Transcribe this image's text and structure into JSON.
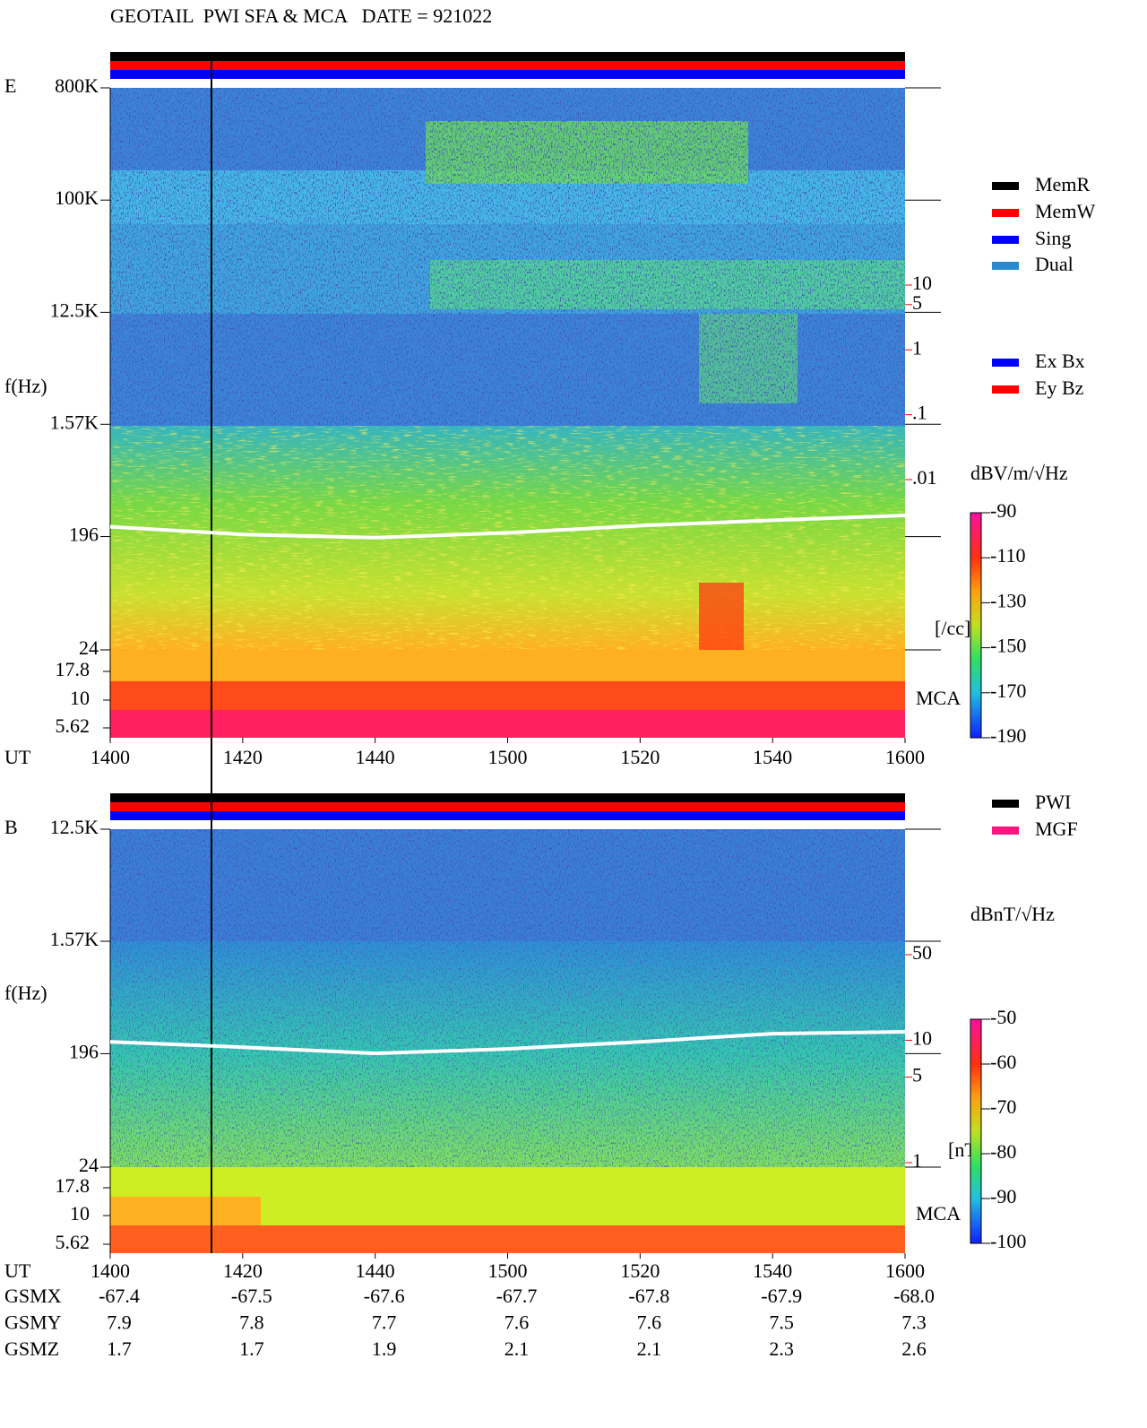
{
  "title": "GEOTAIL  PWI SFA & MCA   DATE = 921022",
  "chart_data": [
    {
      "type": "spectrogram",
      "panel_label": "E",
      "y_label": "f(Hz)",
      "x_label": "UT",
      "log_y": true,
      "ylim": [
        24,
        800000
      ],
      "yticks": [
        {
          "value": 800000,
          "label": "800K"
        },
        {
          "value": 100000,
          "label": "100K"
        },
        {
          "value": 12500,
          "label": "12.5K"
        },
        {
          "value": 1570,
          "label": "1.57K"
        },
        196,
        24
      ],
      "mca_label": "MCA",
      "mca_ticks": [
        17.8,
        10,
        5.62
      ],
      "xlim": [
        1400,
        1600
      ],
      "xticks": [
        1400,
        1420,
        1440,
        1500,
        1520,
        1540,
        1600
      ],
      "trace": {
        "color": "#ffffff",
        "x": [
          1400,
          1420,
          1440,
          1500,
          1520,
          1540,
          1600
        ],
        "values": [
          235,
          204,
          192,
          210,
          240,
          265,
          290
        ]
      },
      "y2lim": [
        0.01,
        10
      ],
      "y2ticks": [
        10,
        5,
        1,
        {
          "value": 0.1,
          "label": ".1"
        },
        {
          "value": 0.01,
          "label": ".01"
        }
      ],
      "y2_label": "[/cc]",
      "y2_color": "#ff0000",
      "colorbar": {
        "label": "dBV/m/√Hz",
        "lim": [
          -190,
          -90
        ],
        "ticks": [
          -90,
          -110,
          -130,
          -150,
          -170,
          -190
        ]
      },
      "legend": [
        {
          "name": "MemR",
          "color": "#000000"
        },
        {
          "name": "MemW",
          "color": "#ff0000"
        },
        {
          "name": "Sing",
          "color": "#0000ff"
        },
        {
          "name": "Dual",
          "color": "#2a8ad0"
        }
      ],
      "legend2": [
        {
          "name": "Ex Bx",
          "color": "#0000ff"
        },
        {
          "name": "Ey Bz",
          "color": "#ff0000"
        }
      ]
    },
    {
      "type": "spectrogram",
      "panel_label": "B",
      "y_label": "f(Hz)",
      "x_label": "UT",
      "log_y": true,
      "ylim": [
        24,
        12500
      ],
      "yticks": [
        {
          "value": 12500,
          "label": "12.5K"
        },
        {
          "value": 1570,
          "label": "1.57K"
        },
        196,
        24
      ],
      "mca_label": "MCA",
      "mca_ticks": [
        17.8,
        10,
        5.62
      ],
      "xlim": [
        1400,
        1600
      ],
      "xticks": [
        1400,
        1420,
        1440,
        1500,
        1520,
        1540,
        1600
      ],
      "trace": {
        "color": "#ffffff",
        "x": [
          1400,
          1420,
          1440,
          1500,
          1520,
          1540,
          1600
        ],
        "values": [
          244,
          221,
          197,
          214,
          244,
          284,
          294
        ]
      },
      "y2lim": [
        1,
        50
      ],
      "y2ticks": [
        50,
        10,
        5,
        1
      ],
      "y2_label": "[nT]",
      "y2_color": "#ff0000",
      "colorbar": {
        "label": "dBnT/√Hz",
        "lim": [
          -100,
          -50
        ],
        "ticks": [
          -50,
          -60,
          -70,
          -80,
          -90,
          -100
        ]
      },
      "legend": [
        {
          "name": "PWI",
          "color": "#000000"
        },
        {
          "name": "MGF",
          "color": "#ff1480"
        }
      ]
    }
  ],
  "orbit": [
    {
      "name": "GSMX",
      "values": [
        -67.4,
        -67.5,
        -67.6,
        -67.7,
        -67.8,
        -67.9,
        -68
      ],
      "value_labels": [
        "-67.4",
        "-67.5",
        "-67.6",
        "-67.7",
        "-67.8",
        "-67.9",
        "-68.0"
      ]
    },
    {
      "name": "GSMY",
      "values": [
        7.9,
        7.8,
        7.7,
        7.6,
        7.6,
        7.5,
        7.3
      ]
    },
    {
      "name": "GSMZ",
      "values": [
        1.7,
        1.7,
        1.9,
        2.1,
        2.1,
        2.3,
        2.6
      ]
    }
  ]
}
